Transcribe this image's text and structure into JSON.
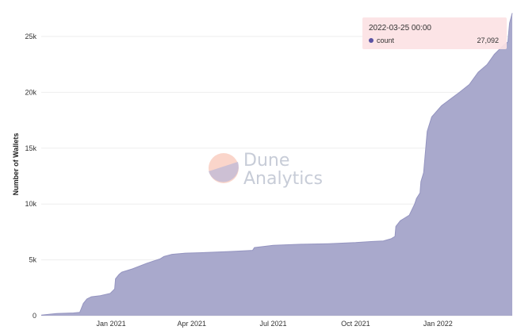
{
  "colors": {
    "area_fill": "#a9a9cc",
    "area_line": "#9494c0",
    "grid": "#eeeeee",
    "tooltip_bg": "#fce2e4",
    "tooltip_dot": "#5a52a3",
    "watermark_a": "#f6b39f",
    "watermark_b": "#b9b7d9"
  },
  "watermark": {
    "line1": "Dune",
    "line2": "Analytics"
  },
  "tooltip": {
    "title": "2022-03-25 00:00",
    "series": "count",
    "value": "27,092"
  },
  "chart_data": {
    "type": "area",
    "ylabel": "Number of Wallets",
    "ylim": [
      0,
      27200
    ],
    "grid": true,
    "xlim": [
      "2020-10-15",
      "2022-03-25"
    ],
    "x_ticks": [
      {
        "date": "2021-01-01",
        "label": "Jan 2021"
      },
      {
        "date": "2021-04-01",
        "label": "Apr 2021"
      },
      {
        "date": "2021-07-01",
        "label": "Jul 2021"
      },
      {
        "date": "2021-10-01",
        "label": "Oct 2021"
      },
      {
        "date": "2022-01-01",
        "label": "Jan 2022"
      }
    ],
    "y_ticks": [
      {
        "value": 0,
        "label": "0"
      },
      {
        "value": 5000,
        "label": "5k"
      },
      {
        "value": 10000,
        "label": "10k"
      },
      {
        "value": 15000,
        "label": "15k"
      },
      {
        "value": 20000,
        "label": "20k"
      },
      {
        "value": 25000,
        "label": "25k"
      }
    ],
    "series": [
      {
        "name": "count",
        "x": [
          "2020-10-15",
          "2020-11-01",
          "2020-11-20",
          "2020-11-27",
          "2020-12-01",
          "2020-12-05",
          "2020-12-10",
          "2020-12-20",
          "2020-12-31",
          "2021-01-05",
          "2021-01-06",
          "2021-01-10",
          "2021-01-13",
          "2021-01-25",
          "2021-02-10",
          "2021-02-25",
          "2021-03-01",
          "2021-03-10",
          "2021-03-25",
          "2021-04-15",
          "2021-05-15",
          "2021-06-08",
          "2021-06-10",
          "2021-07-01",
          "2021-08-01",
          "2021-09-01",
          "2021-10-01",
          "2021-10-20",
          "2021-11-01",
          "2021-11-10",
          "2021-11-14",
          "2021-11-15",
          "2021-11-20",
          "2021-11-30",
          "2021-12-06",
          "2021-12-08",
          "2021-12-12",
          "2021-12-13",
          "2021-12-16",
          "2021-12-20",
          "2021-12-25",
          "2022-01-05",
          "2022-01-15",
          "2022-01-25",
          "2022-02-05",
          "2022-02-15",
          "2022-02-25",
          "2022-03-05",
          "2022-03-15",
          "2022-03-20",
          "2022-03-22",
          "2022-03-25"
        ],
        "values": [
          50,
          200,
          250,
          300,
          1100,
          1500,
          1700,
          1800,
          2000,
          2400,
          3300,
          3700,
          3900,
          4200,
          4700,
          5100,
          5300,
          5500,
          5600,
          5650,
          5750,
          5850,
          6100,
          6300,
          6400,
          6450,
          6550,
          6650,
          6700,
          6900,
          7100,
          8000,
          8500,
          9000,
          10000,
          10500,
          11000,
          12000,
          12800,
          16500,
          17800,
          18800,
          19400,
          20000,
          20700,
          21800,
          22500,
          23400,
          24200,
          24500,
          26200,
          27092
        ]
      }
    ]
  }
}
